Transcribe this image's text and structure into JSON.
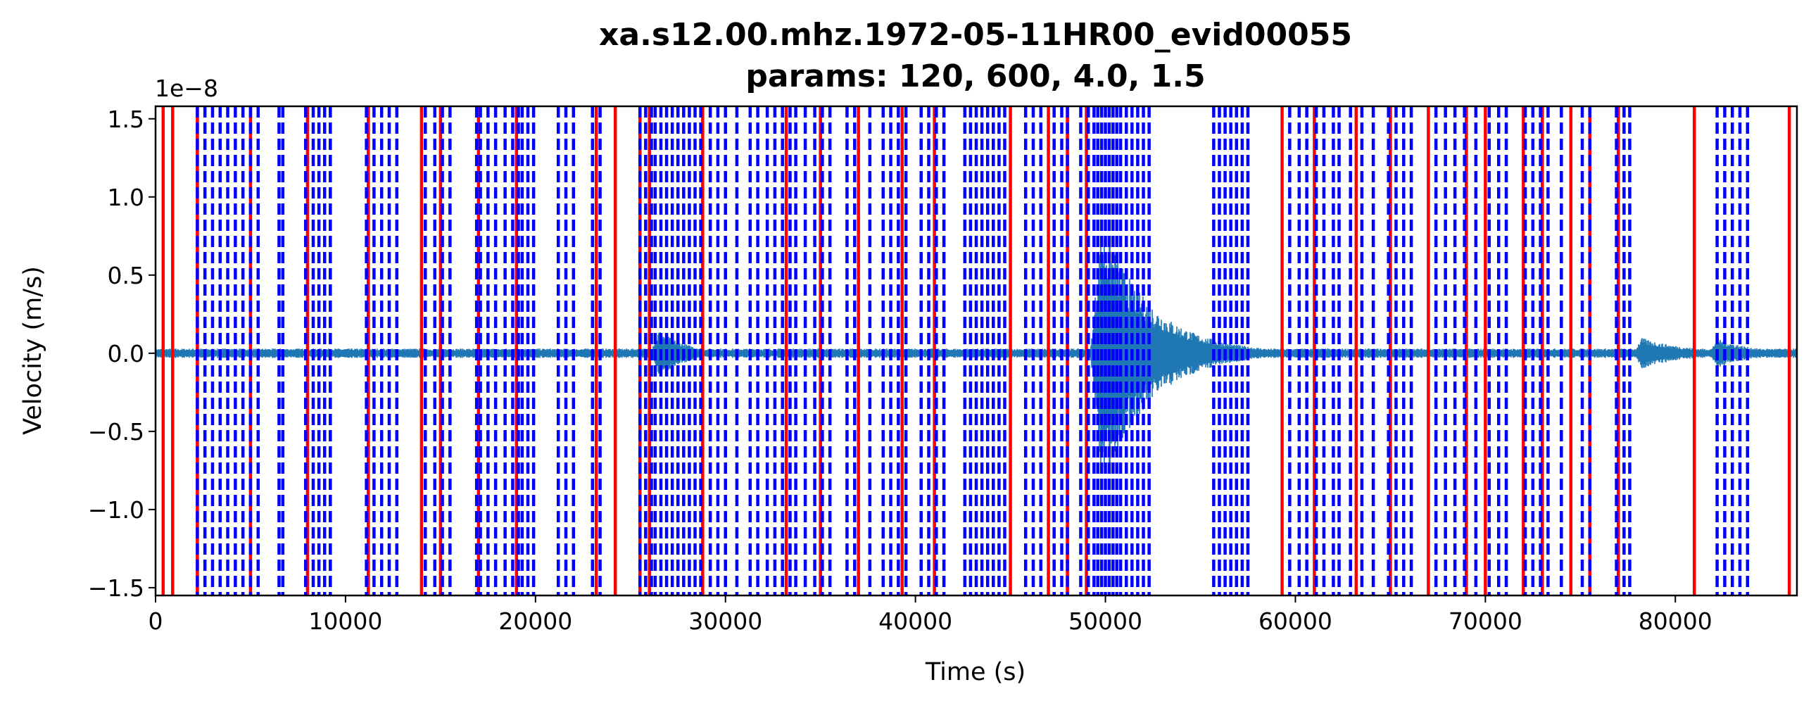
{
  "chart_data": {
    "type": "line",
    "title": "xa.s12.00.mhz.1972-05-11HR00_evid00055",
    "subtitle": "params: 120, 600, 4.0, 1.5",
    "xlabel": "Time (s)",
    "ylabel": "Velocity (m/s)",
    "y_scale_label": "1e−8",
    "xlim": [
      0,
      86400
    ],
    "ylim": [
      -1.55e-08,
      1.58e-08
    ],
    "x_ticks": [
      0,
      10000,
      20000,
      30000,
      40000,
      50000,
      60000,
      70000,
      80000
    ],
    "x_tick_labels": [
      "0",
      "10000",
      "20000",
      "30000",
      "40000",
      "50000",
      "60000",
      "70000",
      "80000"
    ],
    "y_ticks": [
      -1.5e-08,
      -1e-08,
      -5e-09,
      0,
      5e-09,
      1e-08,
      1.5e-08
    ],
    "y_tick_labels": [
      "−1.5",
      "−1.0",
      "−0.5",
      "0.0",
      "0.5",
      "1.0",
      "1.5"
    ],
    "grid": false,
    "trace": {
      "color": "#1f77b4",
      "baseline_amplitude": 3e-10,
      "events": [
        {
          "start": 26000,
          "peak_time": 26500,
          "peak_amplitude": 1.5e-09,
          "decay": 1500
        },
        {
          "start": 49200,
          "peak_time": 49800,
          "peak_amplitude": 8.5e-09,
          "decay": 2600
        },
        {
          "start": 77800,
          "peak_time": 78200,
          "peak_amplitude": 1e-09,
          "decay": 2500
        },
        {
          "start": 81800,
          "peak_time": 82200,
          "peak_amplitude": 1e-09,
          "decay": 1800
        }
      ]
    },
    "trigger_on_color": "#ff0000",
    "trigger_on": [
      400,
      900,
      2200,
      5000,
      8000,
      11200,
      14000,
      15000,
      17000,
      19000,
      23200,
      24200,
      25500,
      26000,
      28800,
      33200,
      35000,
      37000,
      39300,
      41000,
      45000,
      47000,
      48000,
      49000,
      59300,
      61000,
      63200,
      65000,
      67000,
      69000,
      70000,
      72000,
      73000,
      74500,
      75500,
      77000,
      81000,
      86000
    ],
    "trigger_off_color": "#0000ff",
    "trigger_off": [
      2200,
      2600,
      3000,
      3400,
      3800,
      4200,
      4600,
      5000,
      5400,
      6500,
      6700,
      7900,
      8300,
      8600,
      8900,
      9200,
      11100,
      11500,
      11900,
      12300,
      12700,
      14200,
      14700,
      15100,
      15500,
      16900,
      17100,
      17500,
      17900,
      18400,
      18800,
      19100,
      19300,
      19600,
      19900,
      21200,
      21600,
      22000,
      23000,
      23400,
      25500,
      25800,
      26100,
      26300,
      26600,
      26900,
      27200,
      27500,
      27800,
      28100,
      28400,
      28700,
      29200,
      29600,
      30000,
      30600,
      31300,
      31700,
      32200,
      32600,
      33000,
      33400,
      33700,
      34200,
      34700,
      35100,
      35500,
      36400,
      36800,
      37600,
      38300,
      38700,
      39100,
      39500,
      40300,
      40700,
      41100,
      41500,
      42600,
      42900,
      43200,
      43500,
      43800,
      44100,
      44400,
      44700,
      45800,
      46200,
      46600,
      47300,
      47700,
      48000,
      48700,
      49100,
      49400,
      49600,
      49800,
      50000,
      50200,
      50400,
      50600,
      50800,
      51100,
      51400,
      51700,
      52000,
      52300,
      55700,
      56000,
      56300,
      56600,
      56900,
      57200,
      57500,
      59700,
      60200,
      60600,
      61100,
      61500,
      62000,
      62300,
      62900,
      63500,
      64100,
      64900,
      65300,
      65700,
      66100,
      67400,
      67900,
      68400,
      68900,
      69500,
      70200,
      70700,
      71100,
      72100,
      72500,
      72900,
      73300,
      74000,
      75100,
      75500,
      76900,
      77300,
      77600,
      82200,
      82600,
      83000,
      83400,
      83800
    ]
  }
}
